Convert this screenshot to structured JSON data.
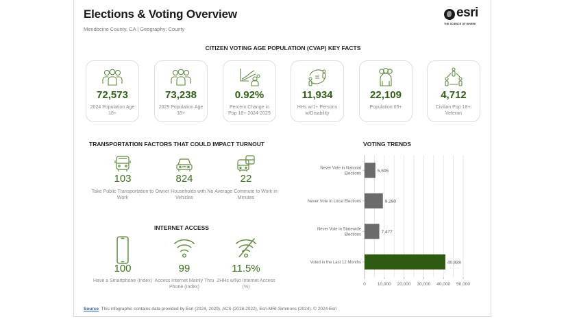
{
  "header": {
    "title": "Elections & Voting Overview",
    "subtitle": "Mendocino County, CA | Geography: County",
    "logo_word": "esri",
    "logo_tagline": "THE SCIENCE OF WHERE"
  },
  "cvap": {
    "heading": "CITIZEN VOTING AGE POPULATION (CVAP) KEY FACTS",
    "cards": [
      {
        "icon": "people-group-icon",
        "value": "72,573",
        "label": "2024 Population Age 18+"
      },
      {
        "icon": "people-group-icon",
        "value": "73,238",
        "label": "2029 Population Age 18+"
      },
      {
        "icon": "growth-chart-person-icon",
        "value": "0.92%",
        "label": "Percent Change in Pop 18+ 2024-2029"
      },
      {
        "icon": "disability-household-icon",
        "value": "11,934",
        "label": "HHs w/1+ Persons w/Disability"
      },
      {
        "icon": "seniors-icon",
        "value": "22,109",
        "label": "Population 65+"
      },
      {
        "icon": "veteran-network-icon",
        "value": "4,712",
        "label": "Civilian Pop 18+: Veteran"
      }
    ]
  },
  "transportation": {
    "heading": "TRANSPORTATION FACTORS THAT COULD IMPACT TURNOUT",
    "stats": [
      {
        "icon": "bus-icon",
        "value": "103",
        "label": "Take Public Transportation to Work"
      },
      {
        "icon": "car-icon",
        "value": "824",
        "label": "Owner Households with No Vehicles"
      },
      {
        "icon": "commute-vehicles-icon",
        "value": "22",
        "label": "Average Commute to Work in Minutes"
      }
    ]
  },
  "internet": {
    "heading": "INTERNET ACCESS",
    "stats": [
      {
        "icon": "smartphone-icon",
        "value": "100",
        "label": "Have a Smartphone (Index)"
      },
      {
        "icon": "wifi-icon",
        "value": "99",
        "label": "Access Internet Mainly Thru Phone (Index)"
      },
      {
        "icon": "no-wifi-icon",
        "value": "11.5%",
        "label": "2HHs w/No Internet Access (%)"
      }
    ]
  },
  "chart_data": {
    "type": "bar",
    "orientation": "horizontal",
    "title": "VOTING TRENDS",
    "categories": [
      "Never Vote in National Elections",
      "Never Vote in Local Elections",
      "Never Vote in Statewide Elections",
      "Voted in the Last 12 Months"
    ],
    "values": [
      5505,
      9290,
      7477,
      40928
    ],
    "value_labels": [
      "5,505",
      "9,290",
      "7,477",
      "40,928"
    ],
    "bar_colors": [
      "#6b6b6b",
      "#6b6b6b",
      "#6b6b6b",
      "#2f5a12"
    ],
    "xlim": [
      0,
      50000
    ],
    "xticks": [
      0,
      10000,
      20000,
      30000,
      40000,
      50000
    ],
    "xtick_labels": [
      "0",
      "10,000",
      "20,000",
      "30,000",
      "40,000",
      "50,000"
    ],
    "grid_step": 5000,
    "grid": true,
    "xlabel": "",
    "ylabel": ""
  },
  "footer": {
    "source_label": "Source",
    "text": ": This infographic contains data provided by Esri (2024, 2029), ACS (2018-2022), Esri-MRI-Simmons (2024). © 2024 Esri"
  }
}
